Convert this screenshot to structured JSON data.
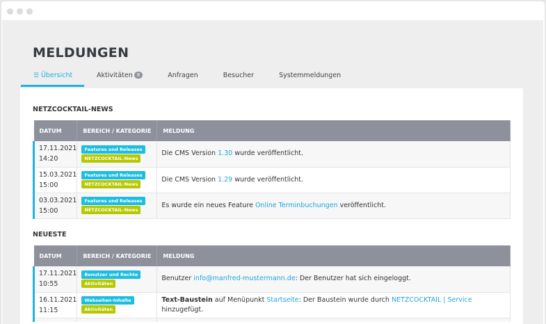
{
  "colors": {
    "accent": "#1fb1e0",
    "category": "#1cbde0",
    "tag": "#b5c800",
    "header": "#8e919c"
  },
  "page": {
    "title": "MELDUNGEN"
  },
  "tabs": [
    {
      "label": "Übersicht",
      "icon": "list-icon",
      "active": true
    },
    {
      "label": "Aktivitäten",
      "badge": "8"
    },
    {
      "label": "Anfragen"
    },
    {
      "label": "Besucher"
    },
    {
      "label": "Systemmeldungen"
    }
  ],
  "sections": [
    {
      "title": "NETZCOCKTAIL-NEWS",
      "columns": [
        "DATUM",
        "BEREICH / KATEGORIE",
        "MELDUNG"
      ],
      "rows": [
        {
          "date": "17.11.2021",
          "time": "14:20",
          "category": "Features und Releases",
          "tag": "NETZCOCKTAIL-News",
          "message": [
            {
              "t": "Die CMS Version "
            },
            {
              "t": "1.30",
              "link": true
            },
            {
              "t": " wurde veröffentlicht."
            }
          ]
        },
        {
          "date": "15.03.2021",
          "time": "15:00",
          "category": "Features und Releases",
          "tag": "NETZCOCKTAIL-News",
          "message": [
            {
              "t": "Die CMS Version "
            },
            {
              "t": "1.29",
              "link": true
            },
            {
              "t": " wurde veröffentlicht."
            }
          ]
        },
        {
          "date": "03.03.2021",
          "time": "15:00",
          "category": "Features und Releases",
          "tag": "NETZCOCKTAIL-News",
          "message": [
            {
              "t": "Es wurde ein neues Feature "
            },
            {
              "t": "Online Terminbuchungen",
              "link": true
            },
            {
              "t": " veröffentlicht."
            }
          ]
        }
      ]
    },
    {
      "title": "NEUESTE",
      "columns": [
        "DATUM",
        "BEREICH / KATEGORIE",
        "MELDUNG"
      ],
      "rows": [
        {
          "date": "17.11.2021",
          "time": "10:55",
          "category": "Benutzer und Rechte",
          "tag": "Aktivitäten",
          "message": [
            {
              "t": "Benutzer "
            },
            {
              "t": "info@manfred-mustermann.de",
              "link": true
            },
            {
              "t": ": Der Benutzer hat sich eingeloggt."
            }
          ]
        },
        {
          "date": "16.11.2021",
          "time": "11:15",
          "category": "Webseiten-Inhalte",
          "tag": "Aktivitäten",
          "message": [
            {
              "t": "Text-Baustein",
              "bold": true
            },
            {
              "t": " auf Menüpunkt "
            },
            {
              "t": "Startseite",
              "link": true
            },
            {
              "t": ": Der Baustein wurde durch "
            },
            {
              "t": "NETZCOCKTAIL | Service",
              "link": true
            },
            {
              "t": " hinzugefügt."
            }
          ]
        },
        {
          "date": "",
          "time": "",
          "category": "",
          "tag": "",
          "message": []
        }
      ]
    }
  ]
}
